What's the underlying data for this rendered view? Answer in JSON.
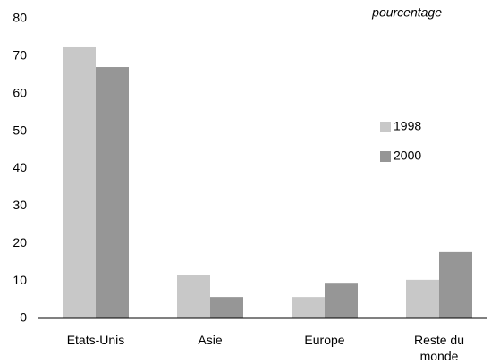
{
  "chart_data": {
    "type": "bar",
    "annotation": "pourcentage",
    "categories": [
      "Etats-Unis",
      "Asie",
      "Europe",
      "Reste du monde"
    ],
    "series": [
      {
        "name": "1998",
        "color": "#c8c8c8",
        "values": [
          72.6,
          11.7,
          5.7,
          10.3
        ]
      },
      {
        "name": "2000",
        "color": "#969696",
        "values": [
          67.1,
          5.7,
          9.5,
          17.7
        ]
      }
    ],
    "ylim": [
      0,
      80
    ],
    "yticks": [
      0,
      10,
      20,
      30,
      40,
      50,
      60,
      70,
      80
    ],
    "grid": false,
    "legend": "right"
  }
}
